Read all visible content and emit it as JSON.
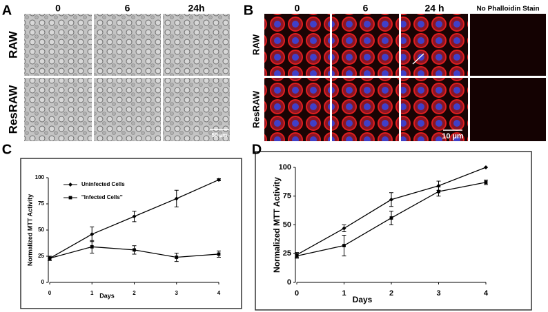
{
  "microscopy": [
    {
      "panel": "A",
      "columns": [
        "0",
        "6",
        "24h"
      ],
      "rows": [
        "RAW",
        "ResRAW"
      ],
      "scale_bar": "50 µm"
    },
    {
      "panel": "B",
      "columns": [
        "0",
        "6",
        "24 h",
        "No Phalloidin Stain"
      ],
      "rows": [
        "RAW",
        "ResRAW"
      ],
      "scale_bar": "10 µm"
    }
  ],
  "chart_data": [
    {
      "type": "line",
      "panel": "C",
      "x_label": "Days",
      "y_label": "Normalized MTT Activity",
      "x": [
        0,
        1,
        2,
        3,
        4
      ],
      "xlim": [
        0,
        4
      ],
      "xticks": [
        0,
        1,
        2,
        3,
        4
      ],
      "ylim": [
        0,
        100
      ],
      "yticks": [
        0,
        25,
        50,
        75,
        100
      ],
      "legend": "upper left",
      "series": [
        {
          "name": "Uninfected Cells",
          "color": "#000000",
          "marker": "diamond",
          "values": [
            23,
            46,
            63,
            80,
            98
          ],
          "errors": [
            2,
            7,
            5,
            8,
            1
          ]
        },
        {
          "name": "''Infected Cells''",
          "color": "#000000",
          "marker": "square",
          "values": [
            23,
            34,
            31,
            24,
            27
          ],
          "errors": [
            2,
            6,
            4,
            4,
            3
          ]
        }
      ]
    },
    {
      "type": "line",
      "panel": "D",
      "x_label": "Days",
      "y_label": "Normalized MTT Activity",
      "x": [
        0,
        1,
        2,
        3,
        4
      ],
      "xlim": [
        0,
        4
      ],
      "xticks": [
        0,
        1,
        2,
        3,
        4
      ],
      "ylim": [
        0,
        100
      ],
      "yticks": [
        0,
        25,
        50,
        75,
        100
      ],
      "series": [
        {
          "color": "#000000",
          "marker": "diamond",
          "values": [
            24,
            47,
            72,
            84,
            100
          ],
          "errors": [
            2,
            3,
            6,
            4,
            0
          ]
        },
        {
          "color": "#000000",
          "marker": "square",
          "values": [
            23,
            32,
            56,
            79,
            87
          ],
          "errors": [
            2,
            9,
            6,
            4,
            2
          ]
        }
      ]
    }
  ]
}
